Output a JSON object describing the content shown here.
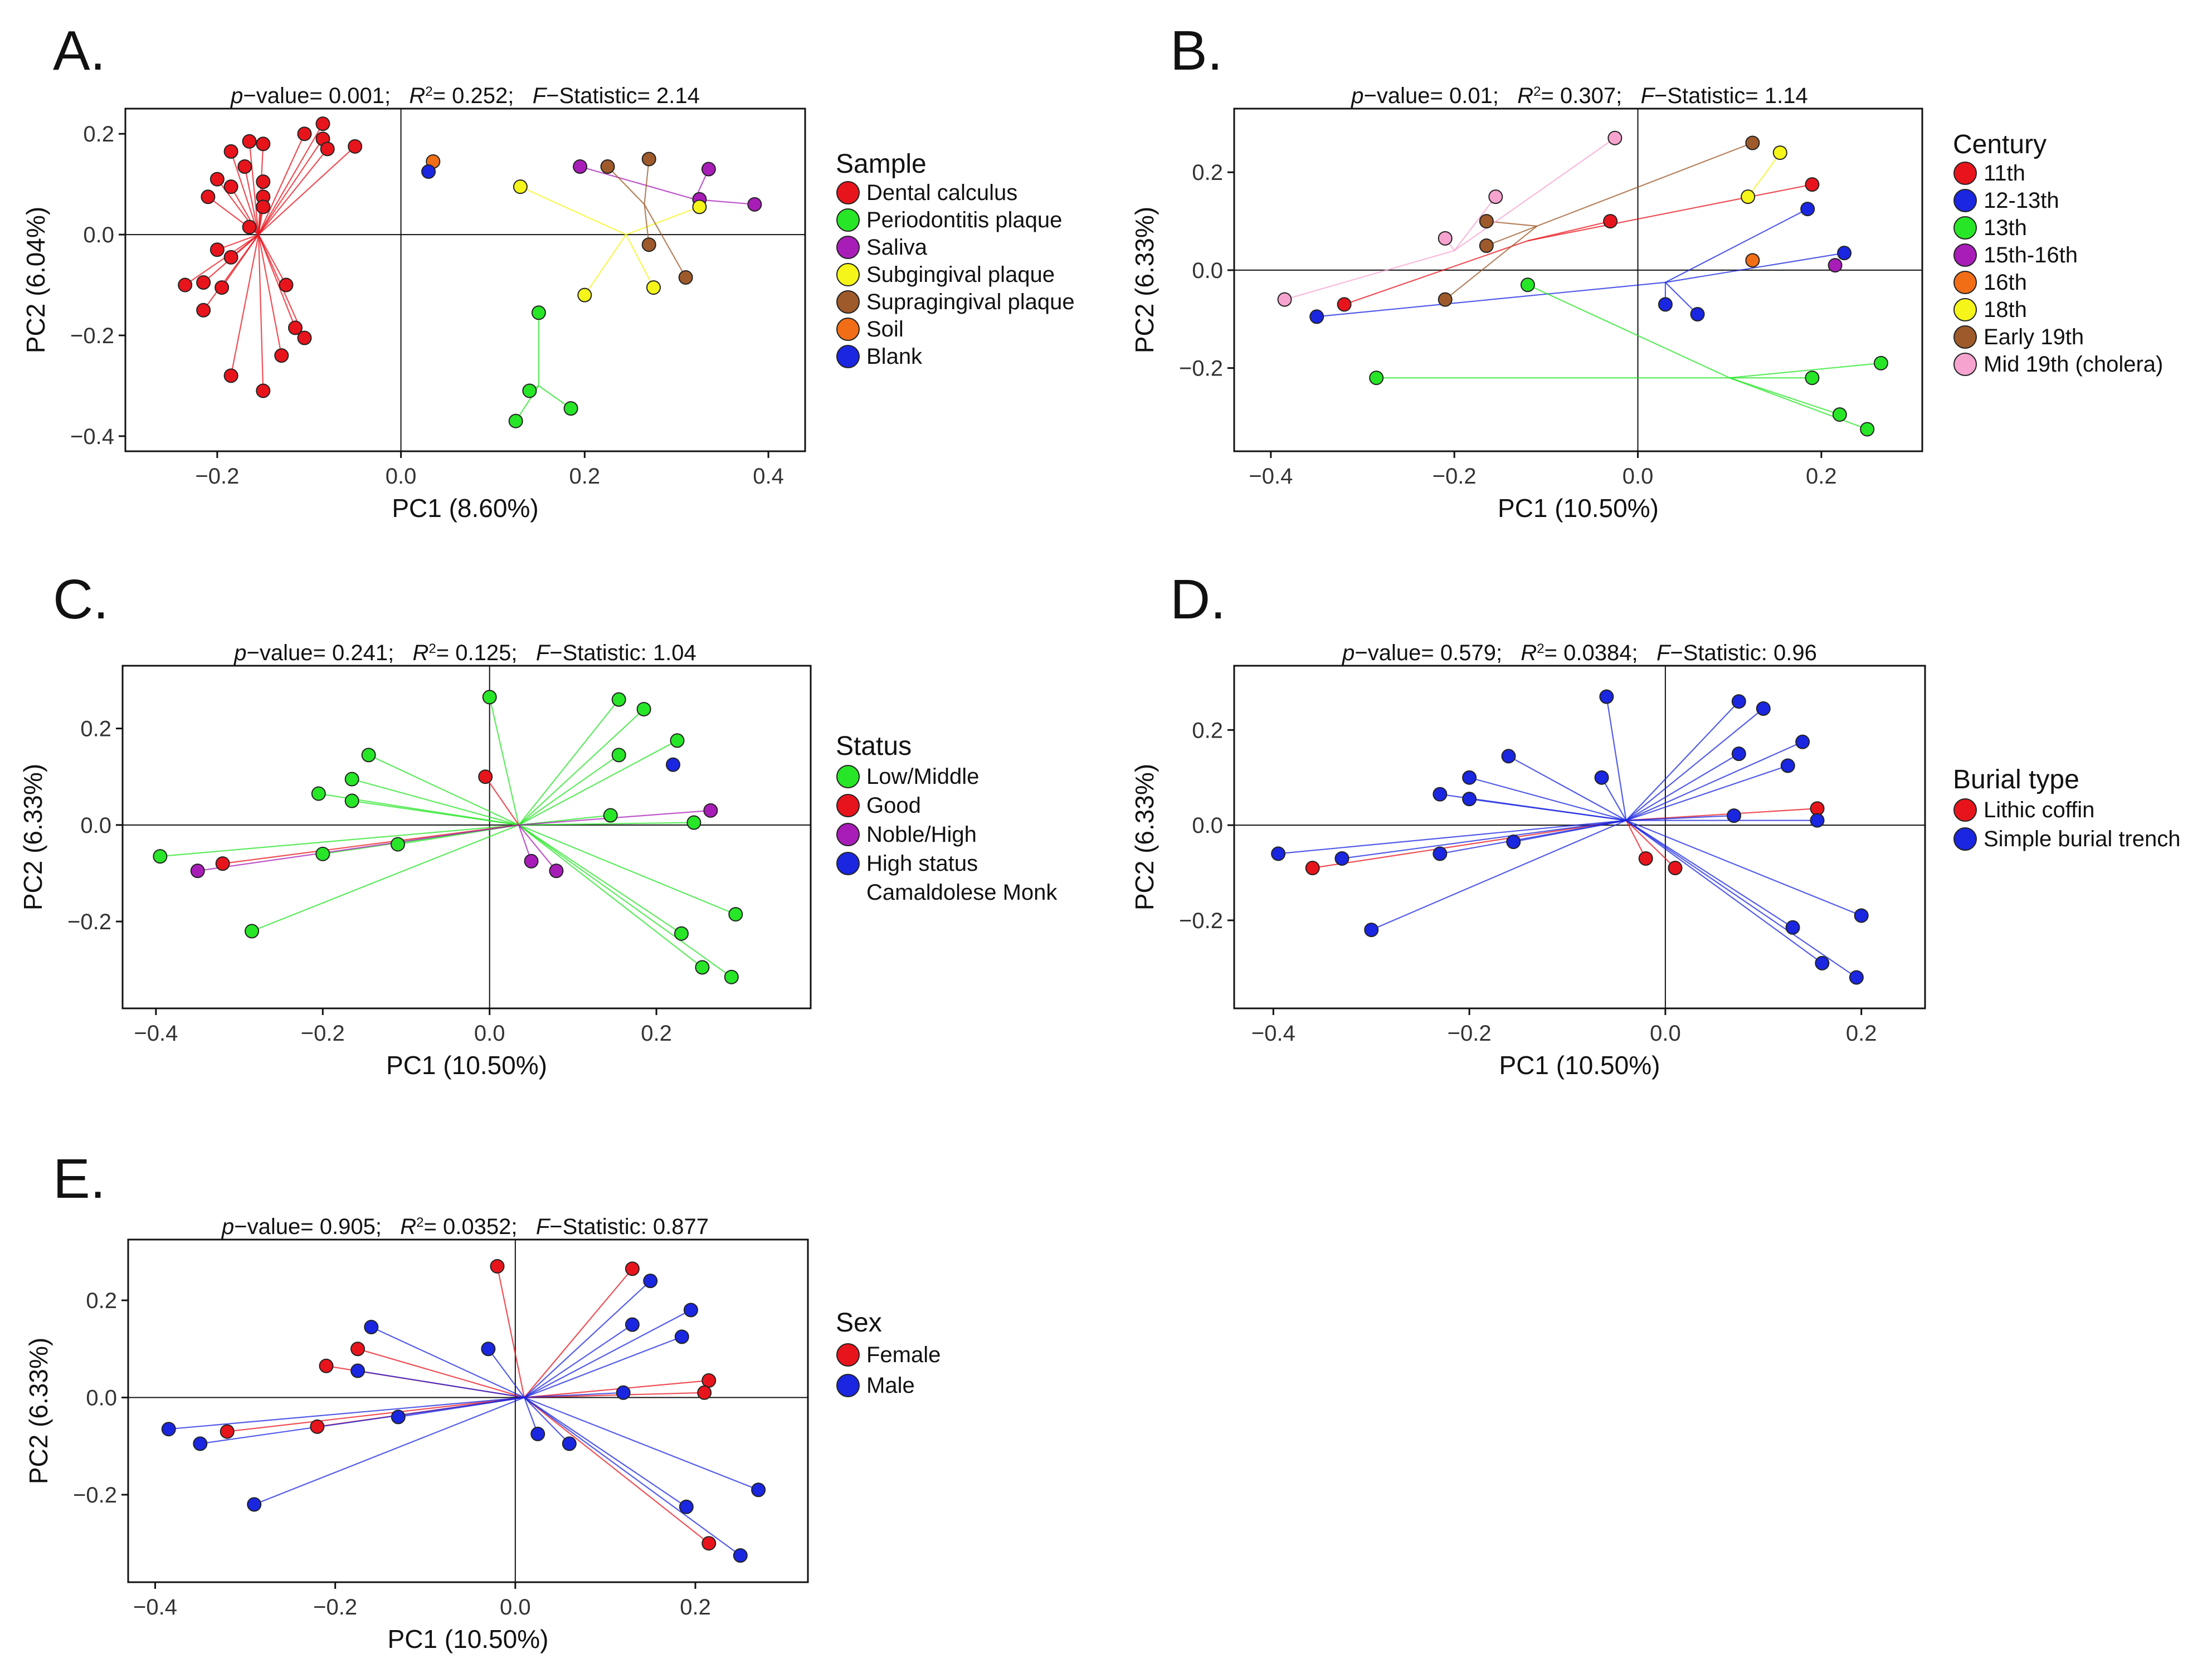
{
  "colors": {
    "red": "#e8141c",
    "green": "#27e627",
    "blue": "#1a26e0",
    "purple": "#a81db8",
    "yellow": "#f5f51a",
    "brown": "#9e5a2a",
    "orange": "#f26e16",
    "pink": "#f7a3cf"
  },
  "chart_data": [
    {
      "id": "A",
      "panel_letter": "A.",
      "type": "scatter",
      "stats": {
        "p_label": "p",
        "p_text": "−value= 0.001;",
        "r_label": "R",
        "r_sup": "2",
        "r_text": "= 0.252;",
        "f_label": "F",
        "f_text": "−Statistic= 2.14"
      },
      "xlabel": "PC1 (8.60%)",
      "ylabel": "PC2 (6.04%)",
      "xlim": [
        -0.3,
        0.44
      ],
      "ylim": [
        -0.43,
        0.25
      ],
      "xticks": [
        -0.2,
        0.0,
        0.2,
        0.4
      ],
      "xtick_labels": [
        "−0.2",
        "0.0",
        "0.2",
        "0.4"
      ],
      "yticks": [
        -0.4,
        -0.2,
        0.0,
        0.2
      ],
      "ytick_labels": [
        "−0.4",
        "−0.2",
        "0.0",
        "0.2"
      ],
      "legend_title": "Sample",
      "groups": [
        {
          "name": "Dental calculus",
          "color": "red",
          "centroid": [
            -0.155,
            0.0
          ],
          "points": [
            [
              -0.165,
              0.185
            ],
            [
              -0.185,
              0.165
            ],
            [
              -0.15,
              0.18
            ],
            [
              -0.105,
              0.2
            ],
            [
              -0.085,
              0.22
            ],
            [
              -0.085,
              0.19
            ],
            [
              -0.08,
              0.17
            ],
            [
              -0.05,
              0.175
            ],
            [
              -0.17,
              0.135
            ],
            [
              -0.2,
              0.11
            ],
            [
              -0.15,
              0.105
            ],
            [
              -0.185,
              0.095
            ],
            [
              -0.15,
              0.075
            ],
            [
              -0.15,
              0.055
            ],
            [
              -0.21,
              0.075
            ],
            [
              -0.165,
              0.015
            ],
            [
              -0.2,
              -0.03
            ],
            [
              -0.185,
              -0.045
            ],
            [
              -0.235,
              -0.1
            ],
            [
              -0.215,
              -0.095
            ],
            [
              -0.195,
              -0.105
            ],
            [
              -0.215,
              -0.15
            ],
            [
              -0.125,
              -0.1
            ],
            [
              -0.115,
              -0.185
            ],
            [
              -0.105,
              -0.205
            ],
            [
              -0.13,
              -0.24
            ],
            [
              -0.185,
              -0.28
            ],
            [
              -0.15,
              -0.31
            ]
          ]
        },
        {
          "name": "Periodontitis plaque",
          "color": "green",
          "centroid": [
            0.15,
            -0.3
          ],
          "points": [
            [
              0.15,
              -0.155
            ],
            [
              0.14,
              -0.31
            ],
            [
              0.185,
              -0.345
            ],
            [
              0.125,
              -0.37
            ]
          ]
        },
        {
          "name": "Saliva",
          "color": "purple",
          "centroid": [
            0.32,
            0.07
          ],
          "points": [
            [
              0.195,
              0.135
            ],
            [
              0.335,
              0.13
            ],
            [
              0.325,
              0.07
            ],
            [
              0.385,
              0.06
            ]
          ]
        },
        {
          "name": "Subgingival plaque",
          "color": "yellow",
          "centroid": [
            0.245,
            0.0
          ],
          "points": [
            [
              0.13,
              0.095
            ],
            [
              0.325,
              0.055
            ],
            [
              0.2,
              -0.12
            ],
            [
              0.275,
              -0.105
            ]
          ]
        },
        {
          "name": "Supragingival plaque",
          "color": "brown",
          "centroid": [
            0.265,
            0.06
          ],
          "points": [
            [
              0.225,
              0.135
            ],
            [
              0.27,
              0.15
            ],
            [
              0.27,
              -0.02
            ],
            [
              0.31,
              -0.085
            ]
          ]
        },
        {
          "name": "Soil",
          "color": "orange",
          "centroid": [
            0.035,
            0.14
          ],
          "points": [
            [
              0.035,
              0.145
            ]
          ]
        },
        {
          "name": "Blank",
          "color": "blue",
          "centroid": [
            0.03,
            0.13
          ],
          "points": [
            [
              0.03,
              0.125
            ]
          ]
        }
      ]
    },
    {
      "id": "B",
      "panel_letter": "B.",
      "type": "scatter",
      "stats": {
        "p_label": "p",
        "p_text": "−value= 0.01;",
        "r_label": "R",
        "r_sup": "2",
        "r_text": "= 0.307;",
        "f_label": "F",
        "f_text": "−Statistic= 1.14"
      },
      "xlabel": "PC1 (10.50%)",
      "ylabel": "PC2 (6.33%)",
      "xlim": [
        -0.44,
        0.31
      ],
      "ylim": [
        -0.37,
        0.33
      ],
      "xticks": [
        -0.4,
        -0.2,
        0.0,
        0.2
      ],
      "xtick_labels": [
        "−0.4",
        "−0.2",
        "0.0",
        "0.2"
      ],
      "yticks": [
        -0.2,
        0.0,
        0.2
      ],
      "ytick_labels": [
        "−0.2",
        "0.0",
        "0.2"
      ],
      "legend_title": "Century",
      "groups": [
        {
          "name": "11th",
          "color": "red",
          "centroid": [
            -0.12,
            0.06
          ],
          "points": [
            [
              -0.32,
              -0.07
            ],
            [
              -0.03,
              0.1
            ],
            [
              0.19,
              0.175
            ]
          ]
        },
        {
          "name": "12-13th",
          "color": "blue",
          "centroid": [
            0.03,
            -0.025
          ],
          "points": [
            [
              -0.35,
              -0.095
            ],
            [
              0.03,
              -0.07
            ],
            [
              0.065,
              -0.09
            ],
            [
              0.225,
              0.035
            ],
            [
              0.185,
              0.125
            ]
          ]
        },
        {
          "name": "13th",
          "color": "green",
          "centroid": [
            0.1,
            -0.22
          ],
          "points": [
            [
              -0.12,
              -0.03
            ],
            [
              -0.285,
              -0.22
            ],
            [
              0.265,
              -0.19
            ],
            [
              0.19,
              -0.22
            ],
            [
              0.22,
              -0.295
            ],
            [
              0.25,
              -0.325
            ]
          ]
        },
        {
          "name": "15th-16th",
          "color": "purple",
          "centroid": [
            0.21,
            0.015
          ],
          "points": [
            [
              0.215,
              0.01
            ]
          ]
        },
        {
          "name": "16th",
          "color": "orange",
          "centroid": [
            0.12,
            0.02
          ],
          "points": [
            [
              0.125,
              0.02
            ]
          ]
        },
        {
          "name": "18th",
          "color": "yellow",
          "centroid": [
            0.14,
            0.2
          ],
          "points": [
            [
              0.155,
              0.24
            ],
            [
              0.12,
              0.15
            ]
          ]
        },
        {
          "name": "Early 19th",
          "color": "brown",
          "centroid": [
            -0.11,
            0.09
          ],
          "points": [
            [
              0.125,
              0.26
            ],
            [
              -0.165,
              0.1
            ],
            [
              -0.165,
              0.05
            ],
            [
              -0.21,
              -0.06
            ]
          ]
        },
        {
          "name": "Mid 19th (cholera)",
          "color": "pink",
          "centroid": [
            -0.2,
            0.04
          ],
          "points": [
            [
              -0.385,
              -0.06
            ],
            [
              -0.21,
              0.065
            ],
            [
              -0.155,
              0.15
            ],
            [
              -0.025,
              0.27
            ]
          ]
        }
      ]
    },
    {
      "id": "C",
      "panel_letter": "C.",
      "type": "scatter",
      "stats": {
        "p_label": "p",
        "p_text": "−value= 0.241;",
        "r_label": "R",
        "r_sup": "2",
        "r_text": "= 0.125;",
        "f_label": "F",
        "f_text": "−Statistic: 1.04"
      },
      "xlabel": "PC1 (10.50%)",
      "ylabel": "PC2 (6.33%)",
      "xlim": [
        -0.44,
        0.385
      ],
      "ylim": [
        -0.38,
        0.33
      ],
      "xticks": [
        -0.4,
        -0.2,
        0.0,
        0.2
      ],
      "xtick_labels": [
        "−0.4",
        "−0.2",
        "0.0",
        "0.2"
      ],
      "yticks": [
        -0.2,
        0.0,
        0.2
      ],
      "ytick_labels": [
        "−0.2",
        "0.0",
        "0.2"
      ],
      "legend_title": "Status",
      "groups": [
        {
          "name": "Low/Middle",
          "color": "green",
          "centroid": [
            0.035,
            0.0
          ],
          "points": [
            [
              -0.395,
              -0.065
            ],
            [
              -0.285,
              -0.22
            ],
            [
              -0.2,
              -0.06
            ],
            [
              -0.205,
              0.065
            ],
            [
              -0.165,
              0.095
            ],
            [
              -0.165,
              0.05
            ],
            [
              -0.145,
              0.145
            ],
            [
              -0.11,
              -0.04
            ],
            [
              0.0,
              0.265
            ],
            [
              0.155,
              0.26
            ],
            [
              0.185,
              0.24
            ],
            [
              0.225,
              0.175
            ],
            [
              0.155,
              0.145
            ],
            [
              0.145,
              0.02
            ],
            [
              0.245,
              0.005
            ],
            [
              0.295,
              -0.185
            ],
            [
              0.23,
              -0.225
            ],
            [
              0.255,
              -0.295
            ],
            [
              0.29,
              -0.315
            ]
          ]
        },
        {
          "name": "Good",
          "color": "red",
          "centroid": [
            0.035,
            0.0
          ],
          "points": [
            [
              -0.32,
              -0.08
            ],
            [
              -0.005,
              0.1
            ]
          ]
        },
        {
          "name": "Noble/High",
          "color": "purple",
          "centroid": [
            0.035,
            0.0
          ],
          "points": [
            [
              -0.35,
              -0.095
            ],
            [
              0.265,
              0.03
            ],
            [
              0.05,
              -0.075
            ],
            [
              0.08,
              -0.095
            ]
          ]
        },
        {
          "name": "High status Camaldolese Monk",
          "color": "blue",
          "centroid": [
            0.22,
            0.125
          ],
          "points": [
            [
              0.22,
              0.125
            ]
          ]
        }
      ],
      "legend_labels": [
        [
          "Low/Middle"
        ],
        [
          "Good"
        ],
        [
          "Noble/High"
        ],
        [
          "High status",
          "Camaldolese Monk"
        ]
      ]
    },
    {
      "id": "D",
      "panel_letter": "D.",
      "type": "scatter",
      "stats": {
        "p_label": "p",
        "p_text": "−value= 0.579;",
        "r_label": "R",
        "r_sup": "2",
        "r_text": "= 0.0384;",
        "f_label": "F",
        "f_text": "−Statistic: 0.96"
      },
      "xlabel": "PC1 (10.50%)",
      "ylabel": "PC2 (6.33%)",
      "xlim": [
        -0.44,
        0.265
      ],
      "ylim": [
        -0.385,
        0.335
      ],
      "xticks": [
        -0.4,
        -0.2,
        0.0,
        0.2
      ],
      "xtick_labels": [
        "−0.4",
        "−0.2",
        "0.0",
        "0.2"
      ],
      "yticks": [
        -0.2,
        0.0,
        0.2
      ],
      "ytick_labels": [
        "−0.2",
        "0.0",
        "0.2"
      ],
      "legend_title": "Burial type",
      "groups": [
        {
          "name": "Lithic coffin",
          "color": "red",
          "centroid": [
            -0.04,
            0.01
          ],
          "points": [
            [
              -0.36,
              -0.09
            ],
            [
              -0.02,
              -0.07
            ],
            [
              0.01,
              -0.09
            ],
            [
              0.155,
              0.035
            ]
          ]
        },
        {
          "name": "Simple burial trench",
          "color": "blue",
          "centroid": [
            -0.04,
            0.01
          ],
          "points": [
            [
              -0.395,
              -0.06
            ],
            [
              -0.33,
              -0.07
            ],
            [
              -0.3,
              -0.22
            ],
            [
              -0.23,
              0.065
            ],
            [
              -0.23,
              -0.06
            ],
            [
              -0.2,
              0.1
            ],
            [
              -0.2,
              0.055
            ],
            [
              -0.16,
              0.145
            ],
            [
              -0.155,
              -0.035
            ],
            [
              -0.06,
              0.27
            ],
            [
              -0.065,
              0.1
            ],
            [
              0.075,
              0.26
            ],
            [
              0.1,
              0.245
            ],
            [
              0.14,
              0.175
            ],
            [
              0.125,
              0.125
            ],
            [
              0.075,
              0.15
            ],
            [
              0.07,
              0.02
            ],
            [
              0.155,
              0.01
            ],
            [
              0.2,
              -0.19
            ],
            [
              0.13,
              -0.215
            ],
            [
              0.16,
              -0.29
            ],
            [
              0.195,
              -0.32
            ]
          ]
        }
      ]
    },
    {
      "id": "E",
      "panel_letter": "E.",
      "type": "scatter",
      "stats": {
        "p_label": "p",
        "p_text": "−value= 0.905;",
        "r_label": "R",
        "r_sup": "2",
        "r_text": "= 0.0352;",
        "f_label": "F",
        "f_text": "−Statistic: 0.877"
      },
      "xlabel": "PC1 (10.50%)",
      "ylabel": "PC2 (6.33%)",
      "xlim": [
        -0.43,
        0.325
      ],
      "ylim": [
        -0.38,
        0.325
      ],
      "xticks": [
        -0.4,
        -0.2,
        0.0,
        0.2
      ],
      "xtick_labels": [
        "−0.4",
        "−0.2",
        "0.0",
        "0.2"
      ],
      "yticks": [
        -0.2,
        0.0,
        0.2
      ],
      "ytick_labels": [
        "−0.2",
        "0.0",
        "0.2"
      ],
      "legend_title": "Sex",
      "groups": [
        {
          "name": "Female",
          "color": "red",
          "centroid": [
            0.01,
            0.0
          ],
          "points": [
            [
              -0.02,
              0.27
            ],
            [
              0.13,
              0.265
            ],
            [
              -0.21,
              0.065
            ],
            [
              -0.175,
              0.1
            ],
            [
              -0.32,
              -0.07
            ],
            [
              -0.22,
              -0.06
            ],
            [
              0.215,
              0.035
            ],
            [
              0.21,
              0.01
            ],
            [
              0.215,
              -0.3
            ]
          ]
        },
        {
          "name": "Male",
          "color": "blue",
          "centroid": [
            0.01,
            0.0
          ],
          "points": [
            [
              -0.385,
              -0.065
            ],
            [
              -0.35,
              -0.095
            ],
            [
              -0.29,
              -0.22
            ],
            [
              -0.16,
              0.145
            ],
            [
              -0.175,
              0.055
            ],
            [
              -0.13,
              -0.04
            ],
            [
              -0.03,
              0.1
            ],
            [
              0.15,
              0.24
            ],
            [
              0.195,
              0.18
            ],
            [
              0.13,
              0.15
            ],
            [
              0.185,
              0.125
            ],
            [
              0.12,
              0.01
            ],
            [
              0.025,
              -0.075
            ],
            [
              0.06,
              -0.095
            ],
            [
              0.27,
              -0.19
            ],
            [
              0.19,
              -0.225
            ],
            [
              0.25,
              -0.325
            ]
          ]
        }
      ]
    }
  ]
}
